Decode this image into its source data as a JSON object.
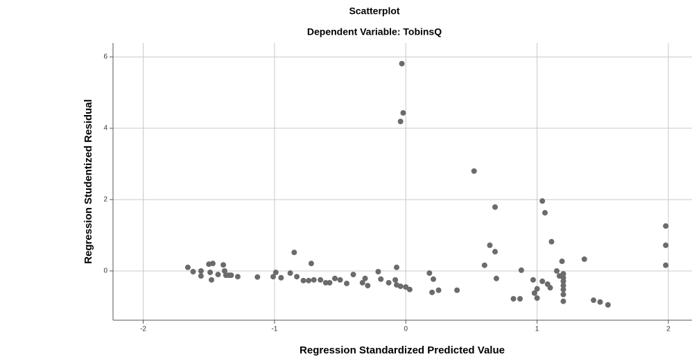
{
  "chart_data": {
    "type": "scatter",
    "title": "Scatterplot",
    "subtitle": "Dependent Variable: TobinsQ",
    "x_label": "Regression Standardized Predicted Value",
    "y_label": "Regression Studentized Residual",
    "xlim": [
      -2.23,
      2.18
    ],
    "ylim": [
      -1.38,
      6.39
    ],
    "xticks": [
      -2,
      -1,
      0,
      1,
      2
    ],
    "yticks": [
      0,
      2,
      4,
      6
    ],
    "grid": true,
    "color": "#6b6b6b",
    "x": [
      -0.03,
      -0.02,
      -0.04,
      0.52,
      0.68,
      1.04,
      1.06,
      1.11,
      0.64,
      0.68,
      0.6,
      0.69,
      0.88,
      0.97,
      1.0,
      0.98,
      1.0,
      0.82,
      0.87,
      1.04,
      1.08,
      1.1,
      1.15,
      1.19,
      1.2,
      1.2,
      1.2,
      1.2,
      1.2,
      1.2,
      1.2,
      1.17,
      1.36,
      1.43,
      1.48,
      1.54,
      1.98,
      1.98,
      1.98,
      -0.72,
      -0.85,
      -1.66,
      -1.62,
      -1.56,
      -1.56,
      -1.5,
      -1.47,
      -1.48,
      -1.49,
      -1.43,
      -1.39,
      -1.38,
      -1.37,
      -1.35,
      -1.33,
      -1.28,
      -1.13,
      -1.01,
      -0.99,
      -0.95,
      -0.88,
      -0.83,
      -0.78,
      -0.74,
      -0.7,
      -0.65,
      -0.61,
      -0.58,
      -0.54,
      -0.5,
      -0.45,
      -0.4,
      -0.33,
      -0.31,
      -0.29,
      -0.21,
      -0.19,
      -0.13,
      -0.08,
      -0.07,
      -0.07,
      -0.04,
      0,
      0.03,
      0.18,
      0.21,
      0.2,
      0.25,
      0.39
    ],
    "values": [
      5.81,
      4.43,
      4.19,
      2.8,
      1.79,
      1.96,
      1.63,
      0.82,
      0.72,
      0.54,
      0.16,
      -0.21,
      0.02,
      -0.25,
      -0.5,
      -0.62,
      -0.76,
      -0.78,
      -0.78,
      -0.29,
      -0.37,
      -0.47,
      0,
      0.27,
      -0.08,
      -0.19,
      -0.29,
      -0.41,
      -0.52,
      -0.66,
      -0.85,
      -0.14,
      0.33,
      -0.82,
      -0.87,
      -0.95,
      1.26,
      0.72,
      0.16,
      0.21,
      0.52,
      0.1,
      -0.02,
      0,
      -0.14,
      0.19,
      0.21,
      -0.25,
      -0.04,
      -0.1,
      0.17,
      0,
      -0.12,
      -0.12,
      -0.12,
      -0.16,
      -0.17,
      -0.16,
      -0.04,
      -0.19,
      -0.06,
      -0.16,
      -0.27,
      -0.27,
      -0.25,
      -0.25,
      -0.33,
      -0.33,
      -0.21,
      -0.25,
      -0.35,
      -0.1,
      -0.33,
      -0.21,
      -0.41,
      -0.02,
      -0.23,
      -0.33,
      -0.25,
      0.1,
      -0.39,
      -0.43,
      -0.45,
      -0.52,
      -0.06,
      -0.23,
      -0.6,
      -0.54,
      -0.54
    ]
  }
}
